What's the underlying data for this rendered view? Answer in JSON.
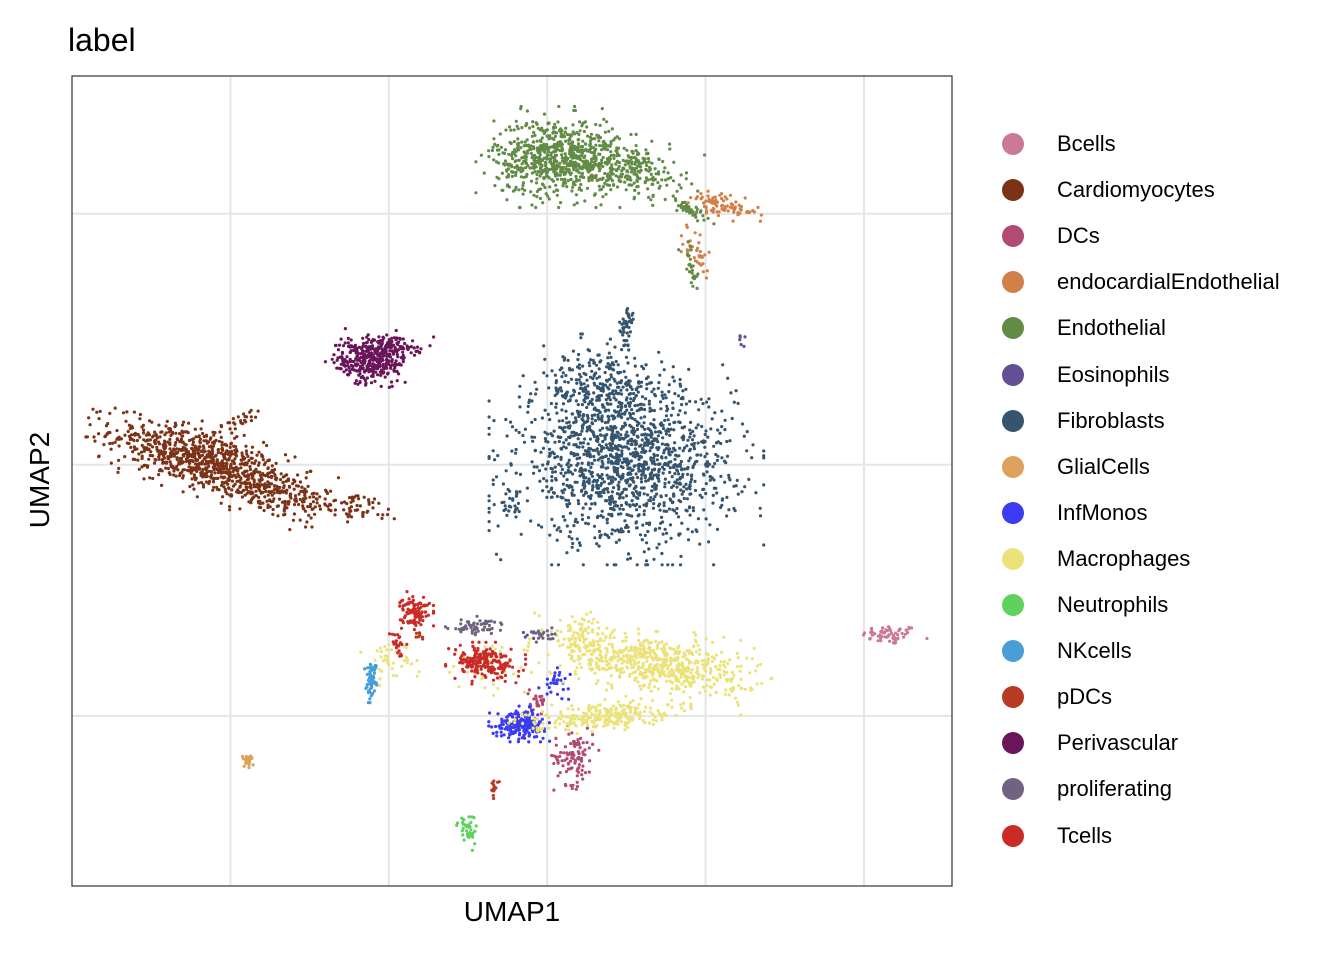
{
  "chart_data": {
    "type": "scatter",
    "title": "label",
    "xlabel": "UMAP1",
    "ylabel": "UMAP2",
    "xlim": [
      0,
      10
    ],
    "ylim": [
      0,
      10
    ],
    "grid": true,
    "tick_labels": false,
    "legend_position": "right",
    "background": "#ffffff",
    "grid_color": "#e5e5e5",
    "series": [
      {
        "name": "Bcells",
        "color": "#CC7A93",
        "clusters": [
          {
            "cx": 9.3,
            "cy": 3.1,
            "rx": 0.32,
            "ry": 0.12,
            "n": 60
          }
        ]
      },
      {
        "name": "Cardiomyocytes",
        "color": "#7C3216",
        "clusters": [
          {
            "cx": 1.4,
            "cy": 5.3,
            "rx": 1.0,
            "ry": 0.35,
            "n": 700,
            "rot": -18
          },
          {
            "cx": 2.2,
            "cy": 4.9,
            "rx": 0.9,
            "ry": 0.3,
            "n": 300,
            "rot": -18
          },
          {
            "cx": 3.2,
            "cy": 4.7,
            "rx": 0.6,
            "ry": 0.15,
            "n": 60,
            "rot": -12
          },
          {
            "cx": 1.9,
            "cy": 5.75,
            "rx": 0.3,
            "ry": 0.08,
            "n": 25,
            "rot": 25
          }
        ]
      },
      {
        "name": "DCs",
        "color": "#B24A73",
        "clusters": [
          {
            "cx": 5.7,
            "cy": 1.6,
            "rx": 0.22,
            "ry": 0.35,
            "n": 100
          },
          {
            "cx": 5.3,
            "cy": 2.3,
            "rx": 0.1,
            "ry": 0.15,
            "n": 25
          }
        ]
      },
      {
        "name": "endocardialEndothelial",
        "color": "#D27F48",
        "clusters": [
          {
            "cx": 7.4,
            "cy": 8.4,
            "rx": 0.4,
            "ry": 0.12,
            "n": 90,
            "rot": -15
          },
          {
            "cx": 7.1,
            "cy": 7.8,
            "rx": 0.14,
            "ry": 0.3,
            "n": 35,
            "rot": 20
          }
        ]
      },
      {
        "name": "Endothelial",
        "color": "#628C46",
        "clusters": [
          {
            "cx": 5.5,
            "cy": 9.0,
            "rx": 0.7,
            "ry": 0.48,
            "n": 700
          },
          {
            "cx": 6.3,
            "cy": 8.85,
            "rx": 0.65,
            "ry": 0.3,
            "n": 250,
            "rot": -10
          },
          {
            "cx": 7.0,
            "cy": 8.35,
            "rx": 0.3,
            "ry": 0.08,
            "n": 45,
            "rot": -30
          },
          {
            "cx": 7.05,
            "cy": 7.6,
            "rx": 0.1,
            "ry": 0.35,
            "n": 25,
            "rot": 10
          }
        ]
      },
      {
        "name": "Eosinophils",
        "color": "#634F93",
        "clusters": [
          {
            "cx": 7.6,
            "cy": 6.75,
            "rx": 0.04,
            "ry": 0.1,
            "n": 6
          },
          {
            "cx": 5.2,
            "cy": 3.1,
            "rx": 0.08,
            "ry": 0.05,
            "n": 5
          }
        ]
      },
      {
        "name": "Fibroblasts",
        "color": "#35556F",
        "clusters": [
          {
            "cx": 6.3,
            "cy": 5.2,
            "rx": 1.2,
            "ry": 0.95,
            "n": 1400
          },
          {
            "cx": 6.0,
            "cy": 6.1,
            "rx": 0.7,
            "ry": 0.55,
            "n": 300
          },
          {
            "cx": 6.3,
            "cy": 6.9,
            "rx": 0.1,
            "ry": 0.25,
            "n": 40
          },
          {
            "cx": 5.0,
            "cy": 4.7,
            "rx": 0.15,
            "ry": 0.2,
            "n": 20
          }
        ]
      },
      {
        "name": "GlialCells",
        "color": "#DDA15B",
        "clusters": [
          {
            "cx": 2.0,
            "cy": 1.55,
            "rx": 0.06,
            "ry": 0.07,
            "n": 25
          }
        ]
      },
      {
        "name": "InfMonos",
        "color": "#3B3BF3",
        "clusters": [
          {
            "cx": 5.1,
            "cy": 2.0,
            "rx": 0.28,
            "ry": 0.17,
            "n": 200
          },
          {
            "cx": 5.5,
            "cy": 2.5,
            "rx": 0.15,
            "ry": 0.15,
            "n": 30
          }
        ]
      },
      {
        "name": "Macrophages",
        "color": "#EBE37A",
        "clusters": [
          {
            "cx": 6.6,
            "cy": 2.75,
            "rx": 1.1,
            "ry": 0.35,
            "n": 650,
            "rot": -10
          },
          {
            "cx": 6.0,
            "cy": 2.1,
            "rx": 0.8,
            "ry": 0.15,
            "n": 250,
            "rot": 5
          },
          {
            "cx": 5.8,
            "cy": 3.1,
            "rx": 0.25,
            "ry": 0.25,
            "n": 60
          },
          {
            "cx": 3.6,
            "cy": 2.8,
            "rx": 0.3,
            "ry": 0.25,
            "n": 40
          },
          {
            "cx": 4.7,
            "cy": 2.7,
            "rx": 0.5,
            "ry": 0.35,
            "n": 50
          }
        ]
      },
      {
        "name": "Neutrophils",
        "color": "#5ED25C",
        "clusters": [
          {
            "cx": 4.5,
            "cy": 0.7,
            "rx": 0.1,
            "ry": 0.2,
            "n": 40
          }
        ]
      },
      {
        "name": "NKcells",
        "color": "#489FD8",
        "clusters": [
          {
            "cx": 3.4,
            "cy": 2.55,
            "rx": 0.06,
            "ry": 0.22,
            "n": 60
          }
        ]
      },
      {
        "name": "pDCs",
        "color": "#B93A22",
        "clusters": [
          {
            "cx": 4.8,
            "cy": 1.2,
            "rx": 0.05,
            "ry": 0.1,
            "n": 18
          },
          {
            "cx": 3.95,
            "cy": 3.1,
            "rx": 0.06,
            "ry": 0.06,
            "n": 8
          }
        ]
      },
      {
        "name": "Perivascular",
        "color": "#6A1559",
        "clusters": [
          {
            "cx": 3.4,
            "cy": 6.5,
            "rx": 0.4,
            "ry": 0.3,
            "n": 350
          },
          {
            "cx": 3.7,
            "cy": 6.65,
            "rx": 0.35,
            "ry": 0.12,
            "n": 60
          }
        ]
      },
      {
        "name": "proliferating",
        "color": "#6F6381",
        "clusters": [
          {
            "cx": 4.6,
            "cy": 3.2,
            "rx": 0.35,
            "ry": 0.1,
            "n": 60
          },
          {
            "cx": 5.35,
            "cy": 3.1,
            "rx": 0.15,
            "ry": 0.1,
            "n": 20
          }
        ]
      },
      {
        "name": "Tcells",
        "color": "#CB2B27",
        "clusters": [
          {
            "cx": 4.7,
            "cy": 2.75,
            "rx": 0.35,
            "ry": 0.2,
            "n": 200
          },
          {
            "cx": 3.9,
            "cy": 3.4,
            "rx": 0.16,
            "ry": 0.18,
            "n": 100
          },
          {
            "cx": 3.7,
            "cy": 3.0,
            "rx": 0.08,
            "ry": 0.2,
            "n": 25
          }
        ]
      }
    ]
  }
}
